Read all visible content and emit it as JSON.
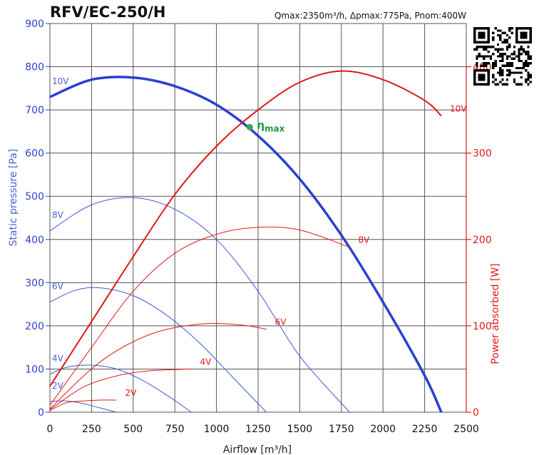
{
  "chart_data": {
    "type": "line",
    "title": "RFV/EC-250/H",
    "subtitle": "Qmax:2350m³/h, Δpmax:775Pa, Pnom:400W",
    "xlabel": "Airflow [m³/h]",
    "ylabel": "Static pressure [Pa]",
    "ylabel_right": "Power absorbed [W]",
    "xlim": [
      0,
      2500
    ],
    "ylim": [
      0,
      900
    ],
    "ylim_right": [
      0,
      450
    ],
    "x_ticks": [
      "0",
      "250",
      "500",
      "750",
      "1000",
      "1250",
      "1500",
      "1750",
      "2000",
      "2250",
      "2500"
    ],
    "y_ticks": [
      "0",
      "100",
      "200",
      "300",
      "400",
      "500",
      "600",
      "700",
      "800",
      "900"
    ],
    "y_ticks_right": [
      "0",
      "100",
      "200",
      "300",
      "400"
    ],
    "grid": true,
    "pressure_series": [
      {
        "name": "10V",
        "x": [
          0,
          250,
          500,
          750,
          1000,
          1250,
          1500,
          1750,
          2000,
          2250,
          2350
        ],
        "y": [
          730,
          770,
          775,
          755,
          712,
          640,
          540,
          410,
          255,
          85,
          0
        ]
      },
      {
        "name": "8V",
        "x": [
          0,
          250,
          500,
          750,
          1000,
          1250,
          1500,
          1800
        ],
        "y": [
          420,
          480,
          497,
          470,
          400,
          280,
          130,
          0
        ]
      },
      {
        "name": "6V",
        "x": [
          0,
          150,
          300,
          500,
          700,
          900,
          1100,
          1300
        ],
        "y": [
          255,
          282,
          288,
          270,
          225,
          160,
          80,
          0
        ]
      },
      {
        "name": "4V",
        "x": [
          0,
          100,
          250,
          400,
          550,
          700,
          850
        ],
        "y": [
          88,
          104,
          109,
          100,
          75,
          40,
          0
        ]
      },
      {
        "name": "2V",
        "x": [
          0,
          100,
          200,
          300,
          400
        ],
        "y": [
          25,
          26,
          20,
          10,
          0
        ]
      }
    ],
    "power_series": [
      {
        "name": "10V",
        "x": [
          0,
          250,
          500,
          750,
          1000,
          1250,
          1500,
          1750,
          2000,
          2250,
          2350
        ],
        "y": [
          30,
          105,
          180,
          252,
          308,
          350,
          382,
          395,
          385,
          361,
          343
        ]
      },
      {
        "name": "8V",
        "x": [
          0,
          250,
          500,
          750,
          1000,
          1250,
          1500,
          1800
        ],
        "y": [
          8,
          75,
          140,
          184,
          206,
          214,
          211,
          191
        ]
      },
      {
        "name": "6V",
        "x": [
          0,
          300,
          600,
          900,
          1150,
          1300
        ],
        "y": [
          4,
          58,
          90,
          102,
          101,
          96
        ]
      },
      {
        "name": "4V",
        "x": [
          0,
          200,
          400,
          600,
          850
        ],
        "y": [
          3,
          29,
          42,
          48,
          50
        ]
      },
      {
        "name": "2V",
        "x": [
          0,
          100,
          200,
          300,
          400
        ],
        "y": [
          2,
          11,
          13,
          14,
          14
        ]
      }
    ],
    "annotations": [
      {
        "text": "η",
        "sub": "max",
        "x": 1200,
        "y": 660,
        "color": "#1d9a3a"
      }
    ]
  },
  "colors": {
    "pressure": "#2b3fd1",
    "pressure_light": "#3d58d6",
    "power": "#e01919",
    "grid": "#555555",
    "eta": "#3aa84c"
  },
  "qr_icon": "qr-code-icon"
}
